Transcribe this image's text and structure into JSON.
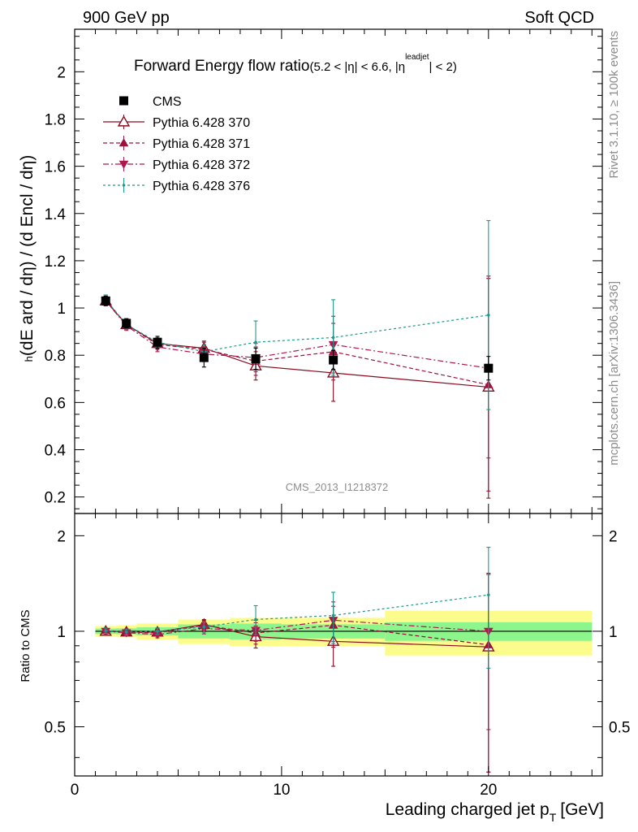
{
  "header": {
    "left": "900 GeV pp",
    "right": "Soft QCD"
  },
  "side_labels": {
    "top": "Rivet 3.1.10, ≥ 100k events",
    "bottom": "mcplots.cern.ch [arXiv:1306.3436]"
  },
  "watermark": "CMS_2013_I1218372",
  "chart_data": {
    "type": "line",
    "title": "Forward Energy flow ratio",
    "title_condition": "(5.2 < |η| < 6.6, |η",
    "title_condition_sup": "leadjet",
    "title_condition_end": "| < 2)",
    "ylabel_main": "(dE ard / dη) / (d Encl / dη)",
    "ylabel_main_sup": "h",
    "ylabel_ratio": "Ratio to CMS",
    "xlabel": "Leading charged jet p",
    "xlabel_sub": "T",
    "xlabel_unit": "[GeV]",
    "xlim": [
      0,
      25.5
    ],
    "ylim_main": [
      0.13,
      2.18
    ],
    "ylim_ratio": [
      0.35,
      2.35
    ],
    "ratio_scale": "log",
    "x_ticks": [
      0,
      10,
      20
    ],
    "y_ticks_main": [
      0.2,
      0.4,
      0.6,
      0.8,
      1,
      1.2,
      1.4,
      1.6,
      1.8,
      2
    ],
    "y_tick_labels_main": [
      "0.2",
      "0.4",
      "0.6",
      "0.8",
      "1",
      "1.2",
      "1.4",
      "1.6",
      "1.8",
      "2"
    ],
    "y_ticks_ratio": [
      0.5,
      1,
      2
    ],
    "y_tick_labels_ratio": [
      "0.5",
      "1",
      "2"
    ],
    "legend_position": "top-left",
    "x": [
      1.5,
      2.5,
      4.0,
      6.25,
      8.75,
      12.5,
      20.0
    ],
    "x_bins": [
      [
        1,
        2
      ],
      [
        2,
        3
      ],
      [
        3,
        5
      ],
      [
        5,
        7.5
      ],
      [
        7.5,
        10
      ],
      [
        10,
        15
      ],
      [
        15,
        25
      ]
    ],
    "data": {
      "name": "CMS",
      "values": [
        1.03,
        0.935,
        0.855,
        0.79,
        0.785,
        0.78,
        0.745
      ],
      "band_inner": [
        0.02,
        0.02,
        0.025,
        0.04,
        0.045,
        0.04,
        0.05
      ],
      "band_outer": [
        0.04,
        0.04,
        0.05,
        0.07,
        0.08,
        0.08,
        0.12
      ],
      "color": "#000000"
    },
    "series": [
      {
        "name": "Pythia 6.428 370",
        "values": [
          1.03,
          0.93,
          0.85,
          0.83,
          0.755,
          0.725,
          0.665
        ],
        "errors": [
          0.02,
          0.02,
          0.02,
          0.03,
          0.06,
          0.12,
          0.47
        ],
        "color": "#8b0a1e",
        "dash": "",
        "marker": "triangle-up-open"
      },
      {
        "name": "Pythia 6.428 371",
        "values": [
          1.035,
          0.93,
          0.845,
          0.825,
          0.775,
          0.815,
          0.675
        ],
        "errors": [
          0.02,
          0.02,
          0.02,
          0.03,
          0.06,
          0.12,
          0.45
        ],
        "color": "#a0103c",
        "dash": "5,3",
        "marker": "triangle-up-filled"
      },
      {
        "name": "Pythia 6.428 372",
        "values": [
          1.03,
          0.925,
          0.835,
          0.805,
          0.79,
          0.845,
          0.745
        ],
        "errors": [
          0.02,
          0.02,
          0.02,
          0.03,
          0.06,
          0.12,
          0.38
        ],
        "color": "#b0154e",
        "dash": "7,3,2,3",
        "marker": "triangle-down-filled"
      },
      {
        "name": "Pythia 6.428 376",
        "values": [
          1.035,
          0.93,
          0.855,
          0.815,
          0.855,
          0.875,
          0.97
        ],
        "errors": [
          0.02,
          0.02,
          0.02,
          0.03,
          0.09,
          0.16,
          0.4
        ],
        "color": "#1a9a8a",
        "dash": "3,3",
        "marker": "dot"
      }
    ],
    "band_colors": {
      "inner": "#8cf58c",
      "outer": "#fcfc8c"
    }
  }
}
